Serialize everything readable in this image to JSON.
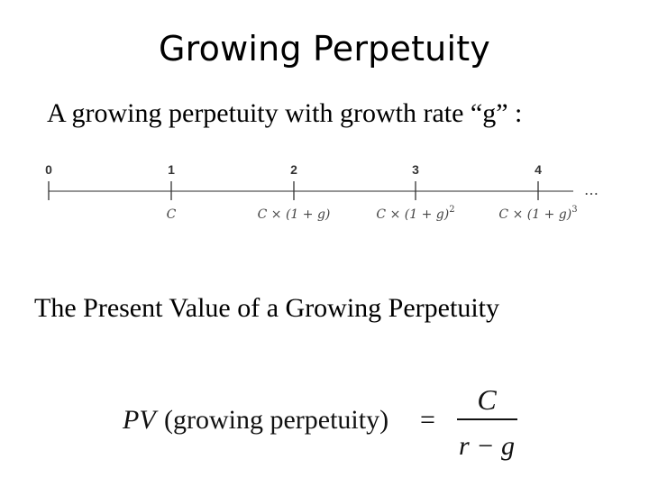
{
  "slide": {
    "title": "Growing Perpetuity",
    "intro_text": "A growing perpetuity with growth rate “g” :",
    "section_heading": "The Present Value of a Growing Perpetuity"
  },
  "timeline": {
    "periods": [
      "0",
      "1",
      "2",
      "3",
      "4"
    ],
    "ellipsis": "…",
    "cash_flows": [
      {
        "period": "1",
        "base": "C",
        "exponent": ""
      },
      {
        "period": "2",
        "base": "C × (1 + g)",
        "exponent": ""
      },
      {
        "period": "3",
        "base": "C × (1 + g)",
        "exponent": "2"
      },
      {
        "period": "4",
        "base": "C × (1 + g)",
        "exponent": "3"
      }
    ]
  },
  "formula": {
    "lhs_pv": "PV",
    "lhs_paren": "(growing perpetuity)",
    "equals": "=",
    "numerator": "C",
    "denominator": "r − g"
  }
}
